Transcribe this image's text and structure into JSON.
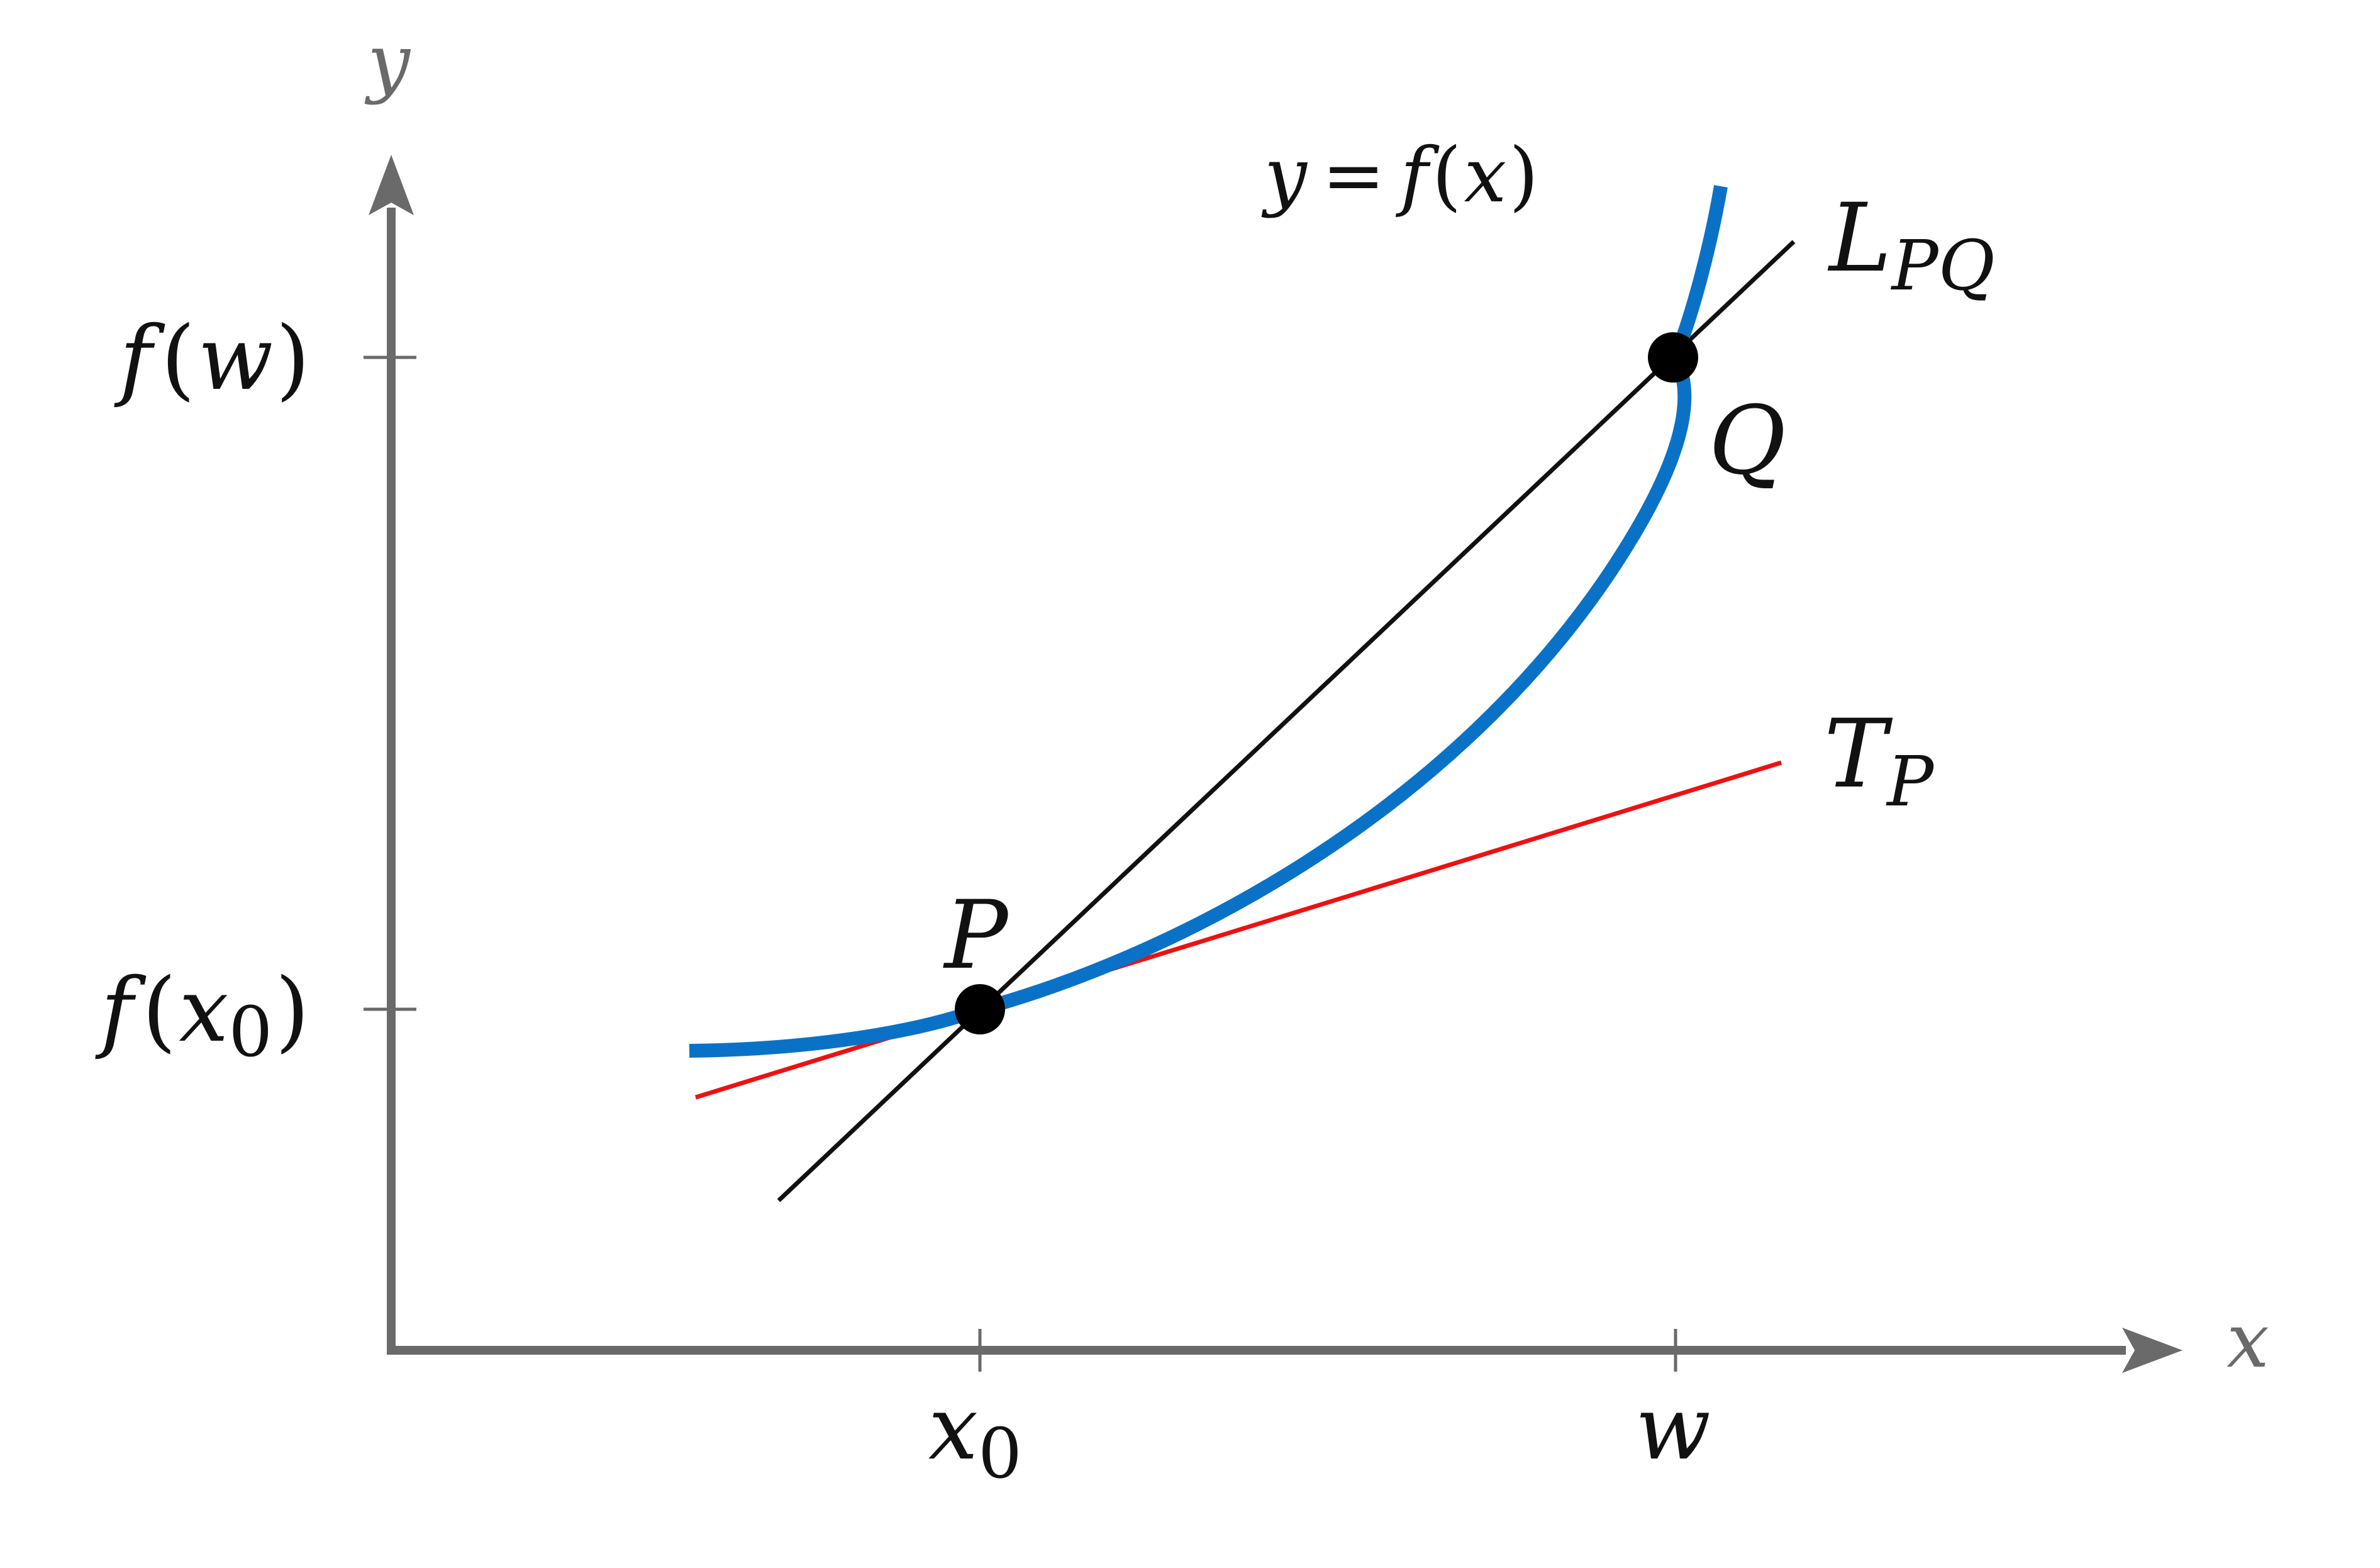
{
  "colors": {
    "axis": "#6a6a6a",
    "curve": "#0a72c6",
    "secant": "#111111",
    "tangent": "#ee1111",
    "points": "#000000"
  },
  "axes": {
    "x_label": "x",
    "y_label": "y",
    "x_ticks": {
      "x0": {
        "base": "x",
        "sub": "0"
      },
      "w": "w"
    },
    "y_ticks": {
      "fw": {
        "pre": "f",
        "open": "(",
        "var": "w",
        "close": ")"
      },
      "fx0": {
        "pre": "f",
        "open": "(",
        "var": "x",
        "sub": "0",
        "close": ")"
      }
    }
  },
  "curve_label": {
    "y": "y",
    "eq": "=",
    "f": "f",
    "open": "(",
    "x": "x",
    "close": ")"
  },
  "secant_label": {
    "base": "L",
    "sub": "PQ"
  },
  "tangent_label": {
    "base": "T",
    "sub": "P"
  },
  "point_P": "P",
  "point_Q": "Q"
}
